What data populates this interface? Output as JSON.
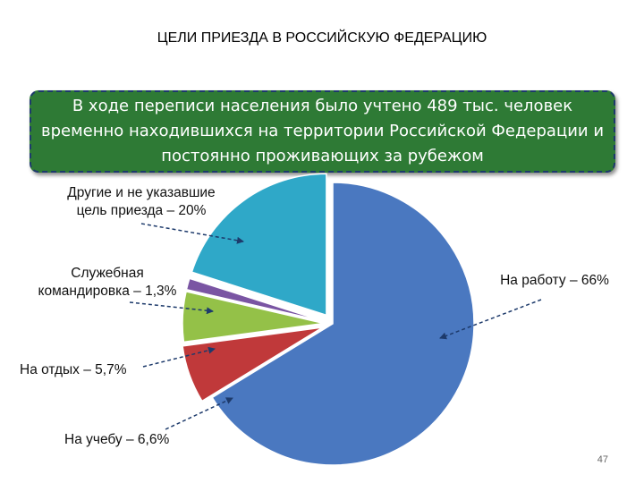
{
  "page": {
    "title": "ЦЕЛИ ПРИЕЗДА В РОССИЙСКУЮ ФЕДЕРАЦИЮ",
    "banner": "В ходе переписи населения было учтено 489 тыс. человек временно находившихся на территории Российской Федерации и постоянно проживающих за рубежом",
    "page_number": "47"
  },
  "chart_data": {
    "type": "pie",
    "title": "ЦЕЛИ ПРИЕЗДА В РОССИЙСКУЮ ФЕДЕРАЦИЮ",
    "slices": [
      {
        "label": "На работу – 66%",
        "value": 66,
        "color": "#4a78c0"
      },
      {
        "label": "На учебу – 6,6%",
        "value": 6.6,
        "color": "#c0393a"
      },
      {
        "label": "На отдых – 5,7%",
        "value": 5.7,
        "color": "#94c148"
      },
      {
        "label": "Служебная командировка – 1,3%",
        "value": 1.3,
        "color": "#7a55a3"
      },
      {
        "label": "Другие и не указавшие цель приезда – 20%",
        "value": 20,
        "color": "#2fa8c8"
      }
    ],
    "labels": {
      "work": "На работу – 66%",
      "study": "На учебу – 6,6%",
      "rest": "На отдых – 5,7%",
      "business": [
        "Служебная",
        "командировка – 1,3%"
      ],
      "other": [
        "Другие и не указавшие",
        "цель приезда – 20%"
      ]
    }
  }
}
